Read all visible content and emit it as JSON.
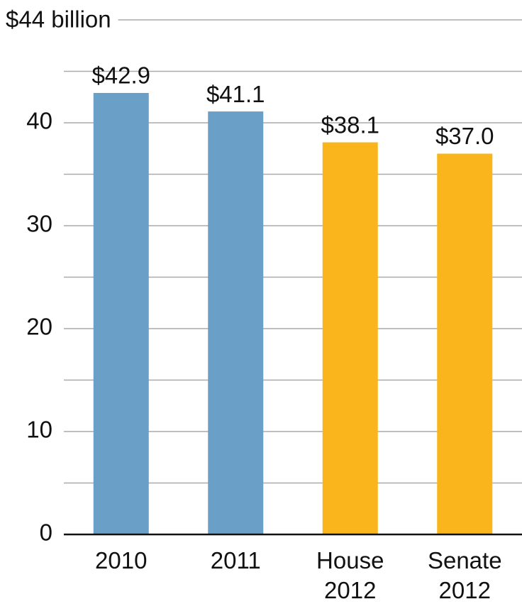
{
  "chart_data": {
    "type": "bar",
    "ylabel": "$44 billion",
    "categories": [
      "2010",
      "2011",
      "House 2012",
      "Senate 2012"
    ],
    "values": [
      42.9,
      41.1,
      38.1,
      37.0
    ],
    "value_labels": [
      "$42.9",
      "$41.1",
      "$38.1",
      "$37.0"
    ],
    "colors": [
      "#6a9fc8",
      "#6a9fc8",
      "#f9b51b",
      "#f9b51b"
    ],
    "ylim": [
      0,
      50
    ],
    "yticks": [
      0,
      10,
      20,
      30,
      40
    ],
    "minor_yticks": [
      5,
      15,
      25,
      35,
      45,
      50
    ],
    "grid": true
  }
}
